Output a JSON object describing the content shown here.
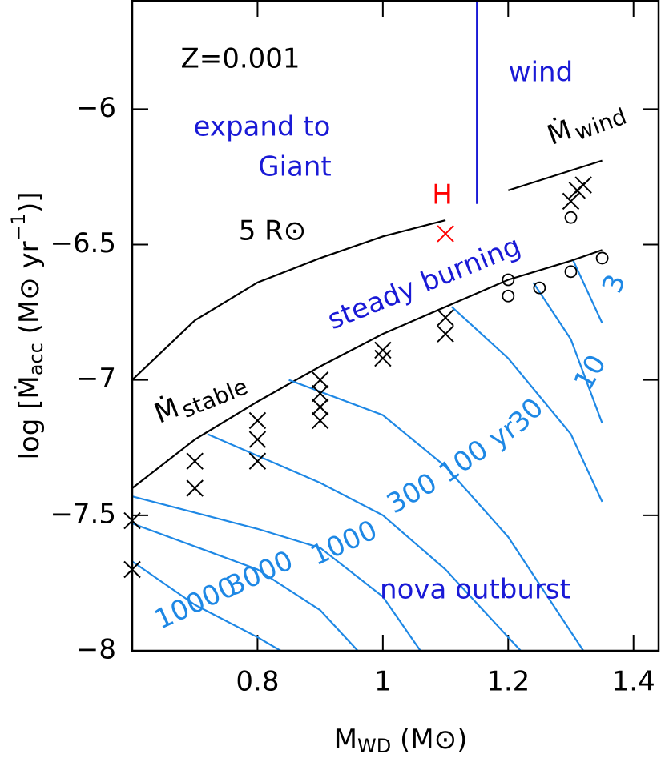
{
  "chart_data": {
    "type": "line",
    "xlabel": [
      "M",
      "WD",
      " (M⊙)"
    ],
    "ylabel": [
      "log [Ṁ",
      "acc",
      " (M⊙ yr",
      "−1",
      ")]"
    ],
    "xlim": [
      0.6,
      1.44
    ],
    "ylim": [
      -8,
      -5.6
    ],
    "xticks": [
      0.8,
      1,
      1.2,
      1.4
    ],
    "yticks": [
      {
        "value": -8,
        "label": "−8"
      },
      {
        "value": -7.5,
        "label": "−7.5"
      },
      {
        "value": -7,
        "label": "−7"
      },
      {
        "value": -6.5,
        "label": "−6.5"
      },
      {
        "value": -6,
        "label": "−6"
      }
    ],
    "annotations": [
      "Z=0.001",
      "wind",
      "expand to",
      "Giant",
      "5 R⊙",
      "steady burning",
      "nova outburst",
      "H"
    ],
    "mdot_labels": [
      [
        "Ṁ",
        "stable"
      ],
      [
        "Ṁ",
        "wind"
      ]
    ],
    "series": [
      {
        "marker": "line",
        "color": "#000000",
        "x": [
          0.6,
          0.7,
          0.8,
          0.9,
          1.0,
          1.1,
          1.2,
          1.3,
          1.35
        ],
        "values": [
          -7.4,
          -7.22,
          -7.08,
          -6.95,
          -6.83,
          -6.73,
          -6.63,
          -6.56,
          -6.52
        ]
      },
      {
        "marker": "line",
        "color": "#000000",
        "x": [
          0.6,
          0.7,
          0.8,
          0.9,
          1.0,
          1.1
        ],
        "values": [
          -7.0,
          -6.78,
          -6.64,
          -6.55,
          -6.47,
          -6.41
        ]
      },
      {
        "marker": "line",
        "color": "#000000",
        "x": [
          1.2,
          1.35
        ],
        "values": [
          -6.3,
          -6.19
        ]
      },
      {
        "marker": "line",
        "color": "#1a1ad6",
        "x": [
          1.15,
          1.15
        ],
        "values": [
          -5.6,
          -6.35
        ]
      },
      {
        "name": "3",
        "marker": "line",
        "color": "#1e88e5",
        "x": [
          1.304,
          1.35
        ],
        "values": [
          -6.56,
          -6.79
        ]
      },
      {
        "name": "10",
        "marker": "line",
        "color": "#1e88e5",
        "x": [
          1.24,
          1.3,
          1.35
        ],
        "values": [
          -6.64,
          -6.85,
          -7.16
        ]
      },
      {
        "name": "30",
        "marker": "line",
        "color": "#1e88e5",
        "x": [
          1.11,
          1.2,
          1.3,
          1.35
        ],
        "values": [
          -6.73,
          -6.92,
          -7.2,
          -7.45
        ]
      },
      {
        "name": "100 yr",
        "marker": "line",
        "color": "#1e88e5",
        "x": [
          0.85,
          1.0,
          1.1,
          1.2,
          1.32
        ],
        "values": [
          -7.0,
          -7.13,
          -7.32,
          -7.58,
          -8.0
        ]
      },
      {
        "name": "300",
        "marker": "line",
        "color": "#1e88e5",
        "x": [
          0.72,
          0.9,
          1.0,
          1.1,
          1.22
        ],
        "values": [
          -7.2,
          -7.38,
          -7.5,
          -7.7,
          -8.0
        ]
      },
      {
        "name": "1000",
        "marker": "line",
        "color": "#1e88e5",
        "x": [
          0.6,
          0.8,
          0.9,
          1.0,
          1.06
        ],
        "values": [
          -7.43,
          -7.55,
          -7.62,
          -7.8,
          -8.0
        ]
      },
      {
        "name": "3000",
        "marker": "line",
        "color": "#1e88e5",
        "x": [
          0.6,
          0.8,
          0.9,
          0.96
        ],
        "values": [
          -7.53,
          -7.7,
          -7.85,
          -8.0
        ]
      },
      {
        "name": "10000",
        "marker": "line",
        "color": "#1e88e5",
        "x": [
          0.6,
          0.7,
          0.8,
          0.837
        ],
        "values": [
          -7.67,
          -7.83,
          -7.95,
          -8.0
        ]
      },
      {
        "marker": "x",
        "color": "#000000",
        "x": [
          0.6,
          0.6,
          0.7,
          0.7,
          0.8,
          0.8,
          0.8,
          0.9,
          0.9,
          0.9,
          0.9,
          1.0,
          1.0,
          1.1,
          1.1,
          1.3,
          1.32,
          1.31
        ],
        "values": [
          -7.52,
          -7.7,
          -7.3,
          -7.4,
          -7.15,
          -7.22,
          -7.3,
          -7.0,
          -7.05,
          -7.1,
          -7.15,
          -6.89,
          -6.92,
          -6.77,
          -6.83,
          -6.34,
          -6.28,
          -6.3
        ]
      },
      {
        "marker": "x",
        "color": "#ff0000",
        "x": [
          1.1
        ],
        "values": [
          -6.46
        ]
      },
      {
        "marker": "o",
        "color": "#000000",
        "x": [
          1.2,
          1.2,
          1.25,
          1.3,
          1.35,
          1.3
        ],
        "values": [
          -6.63,
          -6.69,
          -6.66,
          -6.6,
          -6.55,
          -6.4
        ]
      }
    ]
  }
}
